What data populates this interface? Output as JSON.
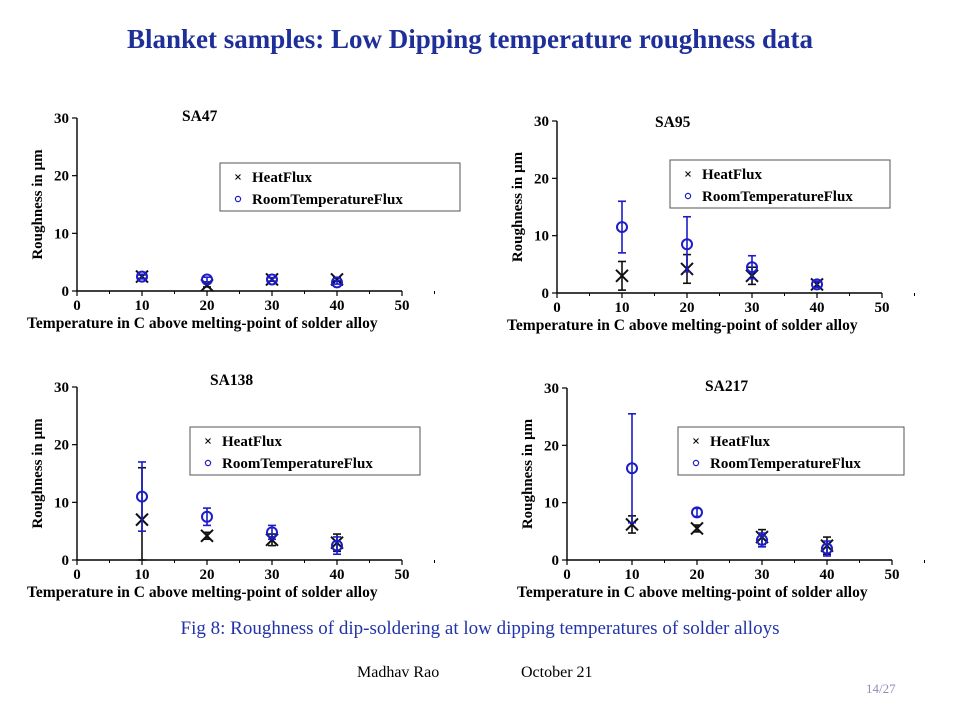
{
  "slide": {
    "title": "Blanket samples: Low Dipping temperature roughness data",
    "caption": "Fig 8: Roughness of dip-soldering at low dipping temperatures of  solder alloys",
    "author": "Madhav Rao",
    "date": "October 21",
    "page": "14/27"
  },
  "colors": {
    "heat": "#111111",
    "room": "#1c1cc8",
    "title": "#1f2f99"
  },
  "chart_data": [
    {
      "type": "scatter",
      "title": "SA47",
      "xlabel": "Temperature in C above melting-point of solder alloy",
      "ylabel": "Roughness in µm",
      "xlim": [
        0,
        50
      ],
      "ylim": [
        0,
        30
      ],
      "xticks": [
        0,
        10,
        20,
        30,
        40,
        50
      ],
      "yticks": [
        0,
        10,
        20,
        30
      ],
      "legend_position": "top-right",
      "series": [
        {
          "name": "HeatFlux",
          "marker": "x",
          "x": [
            10,
            20,
            30,
            40
          ],
          "y": [
            2.5,
            1,
            2,
            2
          ],
          "err": [
            0.3,
            0.3,
            0.3,
            0.3
          ]
        },
        {
          "name": "RoomTemperatureFlux",
          "marker": "o",
          "x": [
            10,
            20,
            30,
            40
          ],
          "y": [
            2.5,
            2,
            2,
            1.5
          ],
          "err": [
            0.4,
            0.4,
            0.3,
            0.3
          ]
        }
      ]
    },
    {
      "type": "scatter",
      "title": "SA95",
      "xlabel": "Temperature in C above melting-point of solder alloy",
      "ylabel": "Roughness in µm",
      "xlim": [
        0,
        50
      ],
      "ylim": [
        0,
        30
      ],
      "xticks": [
        0,
        10,
        20,
        30,
        40,
        50
      ],
      "yticks": [
        0,
        10,
        20,
        30
      ],
      "legend_position": "top-right",
      "series": [
        {
          "name": "HeatFlux",
          "marker": "x",
          "x": [
            10,
            20,
            30,
            40
          ],
          "y": [
            3,
            4.2,
            3,
            1.5
          ],
          "err": [
            2.5,
            2.5,
            1.5,
            0.5
          ]
        },
        {
          "name": "RoomTemperatureFlux",
          "marker": "o",
          "x": [
            10,
            20,
            30,
            40
          ],
          "y": [
            11.5,
            8.5,
            4.5,
            1.5
          ],
          "err": [
            4.5,
            4.8,
            2,
            0.5
          ]
        }
      ]
    },
    {
      "type": "scatter",
      "title": "SA138",
      "xlabel": "Temperature in C above melting-point of solder alloy",
      "ylabel": "Roughness in µm",
      "xlim": [
        0,
        50
      ],
      "ylim": [
        0,
        30
      ],
      "xticks": [
        0,
        10,
        20,
        30,
        40,
        50
      ],
      "yticks": [
        0,
        10,
        20,
        30
      ],
      "legend_position": "top-right",
      "series": [
        {
          "name": "HeatFlux",
          "marker": "x",
          "x": [
            10,
            20,
            30,
            40
          ],
          "y": [
            7,
            4.2,
            3.5,
            3
          ],
          "err": [
            9,
            0.6,
            1,
            1.5
          ]
        },
        {
          "name": "RoomTemperatureFlux",
          "marker": "o",
          "x": [
            10,
            20,
            30,
            40
          ],
          "y": [
            11,
            7.5,
            4.8,
            2.5
          ],
          "err": [
            6,
            1.5,
            1.2,
            1.5
          ]
        }
      ]
    },
    {
      "type": "scatter",
      "title": "SA217",
      "xlabel": "Temperature in C above melting-point of solder alloy",
      "ylabel": "Roughness in µm",
      "xlim": [
        0,
        50
      ],
      "ylim": [
        0,
        30
      ],
      "xticks": [
        0,
        10,
        20,
        30,
        40,
        50
      ],
      "yticks": [
        0,
        10,
        20,
        30
      ],
      "legend_position": "top-right",
      "series": [
        {
          "name": "HeatFlux",
          "marker": "x",
          "x": [
            10,
            20,
            30,
            40
          ],
          "y": [
            6.2,
            5.5,
            4,
            2.5
          ],
          "err": [
            1.5,
            0.6,
            1.3,
            1.5
          ]
        },
        {
          "name": "RoomTemperatureFlux",
          "marker": "o",
          "x": [
            10,
            20,
            30,
            40
          ],
          "y": [
            16,
            8.3,
            3.5,
            2
          ],
          "err": [
            9.5,
            0.7,
            1.2,
            1.3
          ]
        }
      ]
    }
  ]
}
